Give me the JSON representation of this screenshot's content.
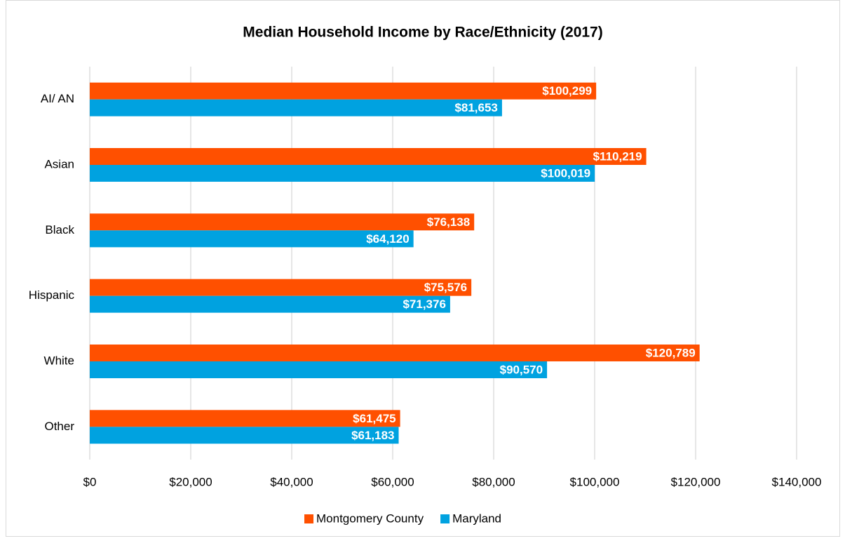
{
  "chart_data": {
    "type": "barh",
    "title": "Median Household Income by Race/Ethnicity (2017)",
    "categories": [
      "AI/ AN",
      "Asian",
      "Black",
      "Hispanic",
      "White",
      "Other"
    ],
    "series": [
      {
        "name": "Montgomery County",
        "color": "#ff5000",
        "values": [
          100299,
          110219,
          76138,
          75576,
          120789,
          61475
        ],
        "value_labels": [
          "$100,299",
          "$110,219",
          "$76,138",
          "$75,576",
          "$120,789",
          "$61,475"
        ]
      },
      {
        "name": "Maryland",
        "color": "#00a2e0",
        "values": [
          81653,
          100019,
          64120,
          71376,
          90570,
          61183
        ],
        "value_labels": [
          "$81,653",
          "$100,019",
          "$64,120",
          "$71,376",
          "$90,570",
          "$61,183"
        ]
      }
    ],
    "xlim": [
      0,
      140000
    ],
    "xticks": [
      {
        "value": 0,
        "label": "$0"
      },
      {
        "value": 20000,
        "label": "$20,000"
      },
      {
        "value": 40000,
        "label": "$40,000"
      },
      {
        "value": 60000,
        "label": "$60,000"
      },
      {
        "value": 80000,
        "label": "$80,000"
      },
      {
        "value": 100000,
        "label": "$100,000"
      },
      {
        "value": 120000,
        "label": "$120,000"
      },
      {
        "value": 140000,
        "label": "$140,000"
      }
    ],
    "grid": true,
    "legend": "bottom"
  }
}
